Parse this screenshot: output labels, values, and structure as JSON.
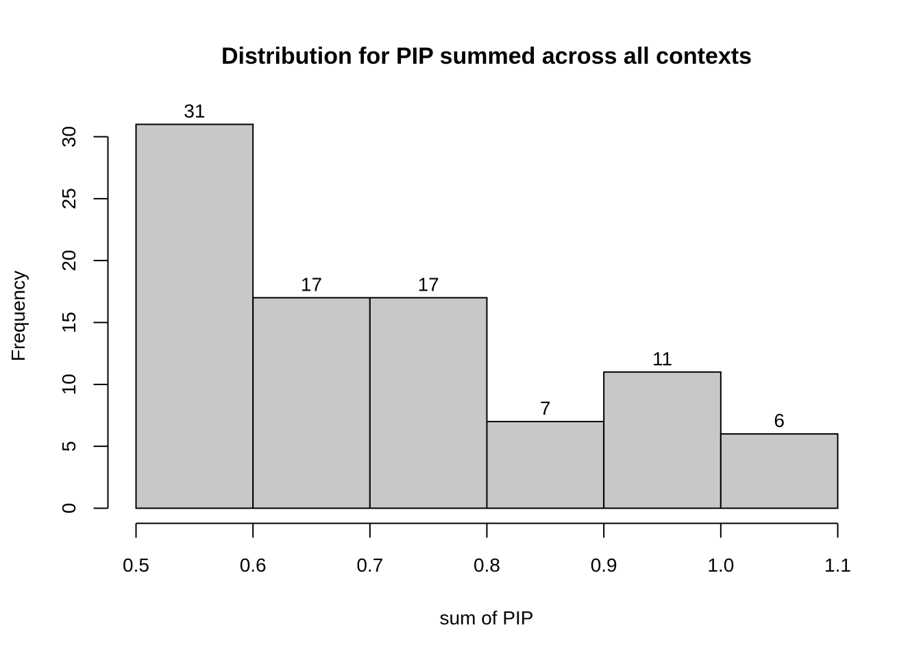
{
  "chart_data": {
    "type": "bar",
    "title": "Distribution for PIP summed across all contexts",
    "xlabel": "sum of PIP",
    "ylabel": "Frequency",
    "bins": [
      {
        "start": 0.5,
        "end": 0.6,
        "count": 31,
        "label": "31"
      },
      {
        "start": 0.6,
        "end": 0.7,
        "count": 17,
        "label": "17"
      },
      {
        "start": 0.7,
        "end": 0.8,
        "count": 17,
        "label": "17"
      },
      {
        "start": 0.8,
        "end": 0.9,
        "count": 7,
        "label": "7"
      },
      {
        "start": 0.9,
        "end": 1.0,
        "count": 11,
        "label": "11"
      },
      {
        "start": 1.0,
        "end": 1.1,
        "count": 6,
        "label": "6"
      }
    ],
    "x_ticks": [
      "0.5",
      "0.6",
      "0.7",
      "0.8",
      "0.9",
      "1.0",
      "1.1"
    ],
    "y_ticks": [
      "0",
      "5",
      "10",
      "15",
      "20",
      "25",
      "30"
    ],
    "xlim": [
      0.5,
      1.1
    ],
    "ylim": [
      0,
      30
    ],
    "grid": false,
    "legend": "none",
    "bar_color": "#c8c8c8",
    "edge_color": "#000000"
  }
}
